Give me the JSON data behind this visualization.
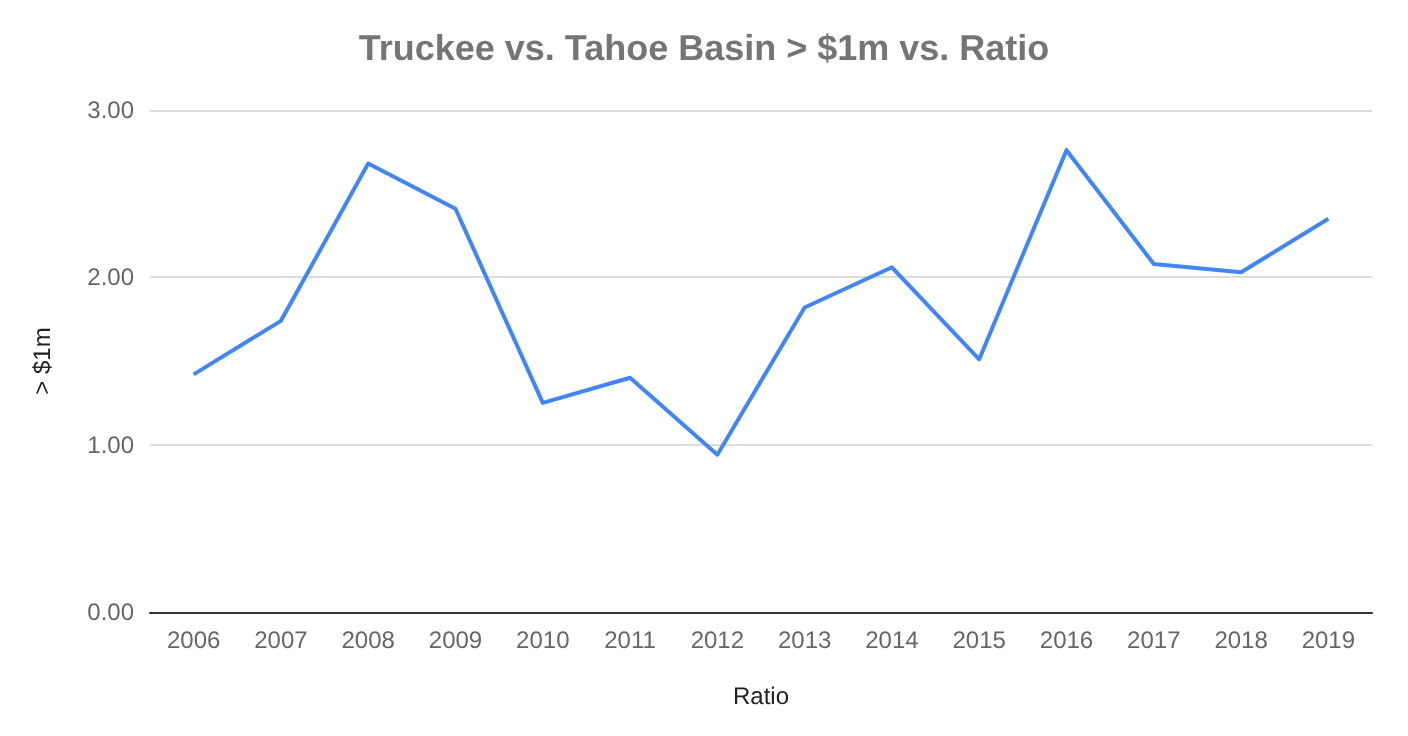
{
  "chart_data": {
    "type": "line",
    "title": "Truckee vs. Tahoe Basin > $1m vs. Ratio",
    "xlabel": "Ratio",
    "ylabel": "> $1m",
    "categories": [
      "2006",
      "2007",
      "2008",
      "2009",
      "2010",
      "2011",
      "2012",
      "2013",
      "2014",
      "2015",
      "2016",
      "2017",
      "2018",
      "2019"
    ],
    "series": [
      {
        "color": "#4285f4",
        "values": [
          1.42,
          1.74,
          2.68,
          2.41,
          1.25,
          1.4,
          0.94,
          1.82,
          2.06,
          1.51,
          2.76,
          2.08,
          2.03,
          2.35
        ]
      }
    ],
    "ylim": [
      0,
      3
    ],
    "yticks": [
      {
        "value": 0,
        "label": "0.00"
      },
      {
        "value": 1,
        "label": "1.00"
      },
      {
        "value": 2,
        "label": "2.00"
      },
      {
        "value": 3,
        "label": "3.00"
      }
    ],
    "grid": "y",
    "marker": "none",
    "line_style": "solid"
  }
}
